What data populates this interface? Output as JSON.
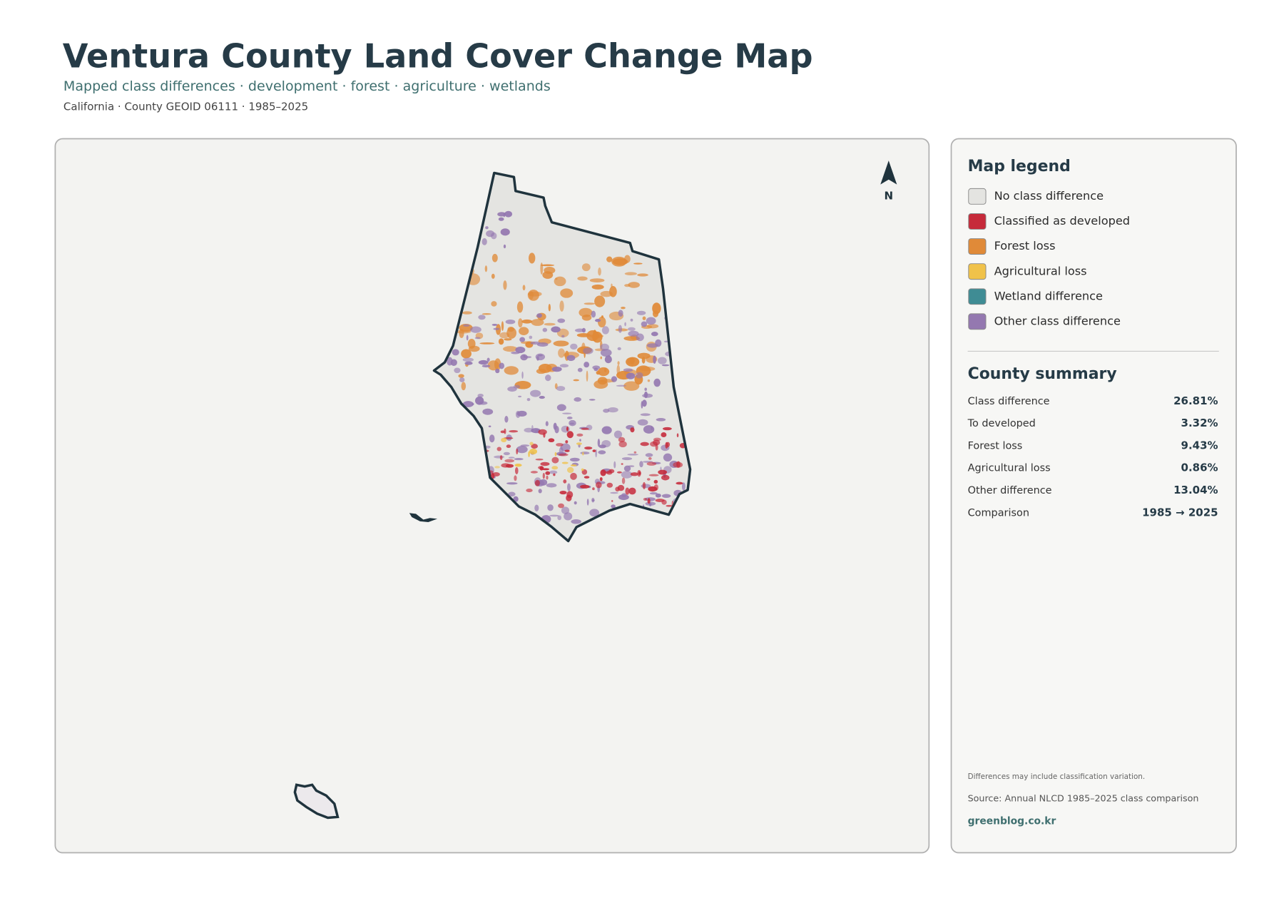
{
  "header": {
    "title": "Ventura County Land Cover Change Map",
    "subtitle": "Mapped class differences · development · forest · agriculture · wetlands",
    "meta": "California · County GEOID 06111 · 1985–2025"
  },
  "map": {
    "north": "N"
  },
  "legend": {
    "title": "Map legend",
    "items": [
      {
        "label": "No class difference",
        "color": "#e4e4e1"
      },
      {
        "label": "Classified as developed",
        "color": "#c62a3a"
      },
      {
        "label": "Forest loss",
        "color": "#e08a38"
      },
      {
        "label": "Agricultural loss",
        "color": "#f0c24a"
      },
      {
        "label": "Wetland difference",
        "color": "#3f8c94"
      },
      {
        "label": "Other class difference",
        "color": "#9478b0"
      }
    ]
  },
  "summary": {
    "title": "County summary",
    "rows": [
      {
        "label": "Class difference",
        "value": "26.81%"
      },
      {
        "label": "To developed",
        "value": "3.32%"
      },
      {
        "label": "Forest loss",
        "value": "9.43%"
      },
      {
        "label": "Agricultural loss",
        "value": "0.86%"
      },
      {
        "label": "Other difference",
        "value": "13.04%"
      },
      {
        "label": "Comparison",
        "value": "1985 → 2025"
      }
    ]
  },
  "footer": {
    "note": "Differences may include classification variation.",
    "source": "Source: Annual NLCD 1985–2025 class comparison",
    "credit": "greenblog.co.kr"
  }
}
